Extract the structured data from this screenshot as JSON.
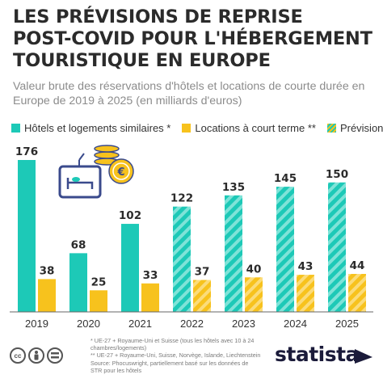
{
  "title_lines": [
    "LES PRÉVISIONS DE REPRISE",
    "POST-COVID POUR L'HÉBERGEMENT",
    "TOURISTIQUE EN EUROPE"
  ],
  "subtitle_lines": [
    "Valeur brute des réservations d'hôtels et locations de courte durée en",
    "Europe de 2019 à 2025 (en milliards d'euros)"
  ],
  "legend": {
    "hotels": "Hôtels et logements similaires *",
    "short": "Locations à court terme **",
    "forecast": "Prévisions"
  },
  "footnotes": [
    "* UE-27 + Royaume-Uni et Suisse (tous les hôtels avec 10 à 24",
    "chambres/logements)",
    "** UE-27 + Royaume-Uni, Suisse, Norvège, Islande, Liechtenstein",
    "Source: Phocuswright, partiellement basé sur les données de",
    "STR pour les hôtels"
  ],
  "brand": "statista",
  "colors": {
    "hotel": "#1dc9b7",
    "short": "#f7c21d",
    "text": "#2b2b2b"
  },
  "icons": [
    "hotel-bed-sign-icon",
    "euro-coins-icon",
    "creative-commons-icon",
    "attribution-icon",
    "no-derivatives-icon",
    "statista-logo-icon"
  ],
  "chart_data": {
    "type": "bar",
    "categories": [
      "2019",
      "2020",
      "2021",
      "2022",
      "2023",
      "2024",
      "2025"
    ],
    "forecast_categories": [
      "2022",
      "2023",
      "2024",
      "2025"
    ],
    "series": [
      {
        "name": "Hôtels et logements similaires *",
        "values": [
          176,
          68,
          102,
          122,
          135,
          145,
          150
        ]
      },
      {
        "name": "Locations à court terme **",
        "values": [
          38,
          25,
          33,
          37,
          40,
          43,
          44
        ]
      }
    ],
    "ylim": [
      0,
      176
    ],
    "grid": false,
    "legend_position": "top-left"
  }
}
